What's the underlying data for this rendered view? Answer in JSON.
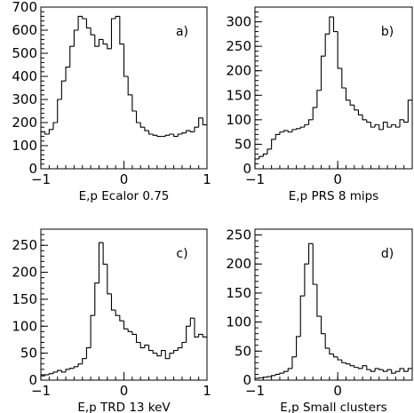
{
  "chart_data": [
    {
      "type": "histogram",
      "panel_label": "a)",
      "xlabel": "E,p Ecalor  0.75",
      "xlim": [
        -1,
        1
      ],
      "ylim": [
        0,
        700
      ],
      "xticks": [
        -1,
        0,
        1
      ],
      "yticks": [
        0,
        100,
        200,
        300,
        400,
        500,
        600,
        700
      ],
      "bin_edges_start": -1.0,
      "bin_width": 0.05,
      "values": [
        160,
        150,
        170,
        200,
        300,
        380,
        440,
        530,
        600,
        660,
        650,
        610,
        580,
        530,
        560,
        540,
        520,
        650,
        660,
        540,
        400,
        320,
        250,
        200,
        180,
        165,
        150,
        145,
        140,
        140,
        145,
        150,
        140,
        150,
        155,
        165,
        160,
        180,
        220,
        190
      ]
    },
    {
      "type": "histogram",
      "panel_label": "b)",
      "xlabel": "E,p PRS  8 mips",
      "xlim": [
        -1,
        0.9
      ],
      "ylim": [
        0,
        330
      ],
      "xticks": [
        -1,
        0
      ],
      "yticks": [
        0,
        50,
        100,
        150,
        200,
        250,
        300
      ],
      "bin_edges_start": -1.0,
      "bin_width": 0.05,
      "values": [
        20,
        25,
        30,
        40,
        60,
        70,
        75,
        78,
        75,
        80,
        82,
        85,
        90,
        100,
        125,
        160,
        230,
        275,
        310,
        280,
        205,
        165,
        140,
        130,
        120,
        110,
        100,
        95,
        85,
        90,
        80,
        95,
        85,
        90,
        85,
        100,
        95,
        140
      ]
    },
    {
      "type": "histogram",
      "panel_label": "c)",
      "xlabel": "E,p TRD  13 keV",
      "xlim": [
        -1,
        1
      ],
      "ylim": [
        0,
        280
      ],
      "xticks": [
        -1,
        0,
        1
      ],
      "yticks": [
        0,
        50,
        100,
        150,
        200,
        250
      ],
      "bin_edges_start": -1.0,
      "bin_width": 0.05,
      "values": [
        8,
        10,
        12,
        15,
        18,
        15,
        20,
        22,
        25,
        30,
        40,
        60,
        120,
        180,
        255,
        215,
        160,
        130,
        120,
        110,
        95,
        90,
        85,
        70,
        60,
        65,
        55,
        50,
        45,
        55,
        40,
        50,
        55,
        60,
        70,
        100,
        115,
        80,
        85,
        80
      ]
    },
    {
      "type": "histogram",
      "panel_label": "d)",
      "xlabel": "E,p Small clusters",
      "xlim": [
        -1,
        0.9
      ],
      "ylim": [
        0,
        260
      ],
      "xticks": [
        -1,
        0
      ],
      "yticks": [
        0,
        50,
        100,
        150,
        200,
        250
      ],
      "bin_edges_start": -1.0,
      "bin_width": 0.05,
      "values": [
        3,
        4,
        5,
        6,
        8,
        10,
        12,
        15,
        20,
        40,
        75,
        145,
        200,
        235,
        165,
        110,
        80,
        55,
        45,
        40,
        35,
        30,
        28,
        25,
        22,
        20,
        25,
        18,
        15,
        20,
        18,
        15,
        18,
        12,
        15,
        20,
        15,
        20
      ]
    }
  ]
}
